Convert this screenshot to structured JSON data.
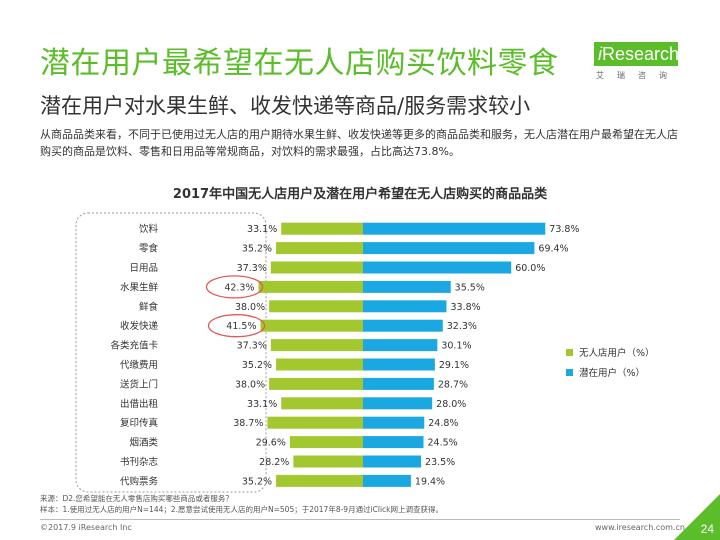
{
  "header": {
    "title": "潜在用户最希望在无人店购买饮料零食",
    "subtitle": "潜在用户对水果生鲜、收发快递等商品/服务需求较小",
    "description": "从商品品类来看，不同于已使用过无人店的用户期待水果生鲜、收发快递等更多的商品品类和服务，无人店潜在用户最希望在无人店购买的商品是饮料、零售和日用品等常规商品，对饮料的需求最强，占比高达73.8%。"
  },
  "logo": {
    "prefix": "i",
    "name": "Research",
    "sub": "艾瑞咨询"
  },
  "chart_data": {
    "type": "bar",
    "orientation": "horizontal-butterfly",
    "title": "2017年中国无人店用户及潜在用户希望在无人店购买的商品品类",
    "categories": [
      "饮料",
      "零食",
      "日用品",
      "水果生鲜",
      "鲜食",
      "收发快递",
      "各类充值卡",
      "代缴费用",
      "送货上门",
      "出借出租",
      "复印传真",
      "烟酒类",
      "书刊杂志",
      "代购票务"
    ],
    "series": [
      {
        "name": "无人店用户（%）",
        "color": "#a3c72f",
        "values": [
          33.1,
          35.2,
          37.3,
          42.3,
          38.0,
          41.5,
          37.3,
          35.2,
          38.0,
          33.1,
          38.7,
          29.6,
          28.2,
          35.2
        ]
      },
      {
        "name": "潜在用户（%）",
        "color": "#1aa7e2",
        "values": [
          73.8,
          69.4,
          60.0,
          35.5,
          33.8,
          32.3,
          30.1,
          29.1,
          28.7,
          28.0,
          24.8,
          24.5,
          23.5,
          19.4
        ]
      }
    ],
    "highlighted_categories": [
      "水果生鲜",
      "收发快递"
    ],
    "legend_position": "right"
  },
  "source": {
    "line1": "来源：D2.您希望能在无人零售店购买哪些商品或者服务？",
    "line2": "样本：1.使用过无人店的用户N=144；2.愿意尝试使用无人店的用户N=505；于2017年8-9月通过iClick网上调查获得。"
  },
  "footer": {
    "copyright": "©2017.9 iResearch Inc",
    "website": "www.iresearch.com.cn",
    "page": "24"
  },
  "colors": {
    "brand_green": "#5bbd2a",
    "highlight_circle": "#e05a5a"
  }
}
